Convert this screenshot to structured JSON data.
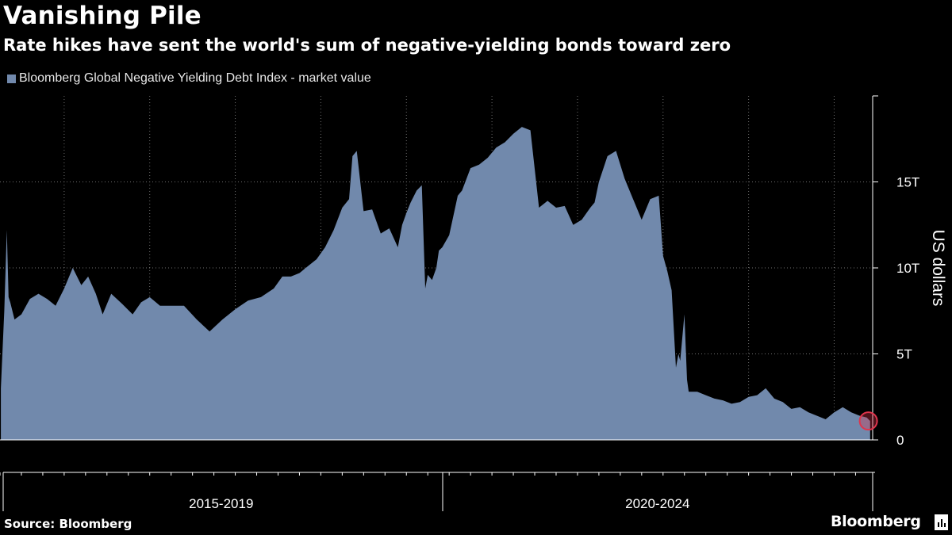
{
  "header": {
    "title": "Vanishing Pile",
    "subtitle": "Rate hikes have sent the world's sum of negative-yielding bonds toward zero"
  },
  "footer": {
    "source": "Source: Bloomberg",
    "brand": "Bloomberg"
  },
  "icons": [
    "bloomberg-terminal-icon"
  ],
  "colors": {
    "background": "#000000",
    "series": "#7189ac",
    "highlight": "#e0344c",
    "grid": "#6e6e6e",
    "text": "#ffffff"
  },
  "chart_data": {
    "type": "area",
    "title": "Vanishing Pile",
    "subtitle": "Rate hikes have sent the world's sum of negative-yielding bonds toward zero",
    "ylabel": "US dollars",
    "y_unit": "trillion US dollars",
    "ylim": [
      0,
      20
    ],
    "y_ticks": [
      {
        "value": 0,
        "label": "0"
      },
      {
        "value": 5,
        "label": "5T"
      },
      {
        "value": 10,
        "label": "10T"
      },
      {
        "value": 15,
        "label": "15T"
      }
    ],
    "x_range": [
      2014.25,
      2024.45
    ],
    "x_groups": [
      {
        "label": "2015-2019",
        "start": 2014.25,
        "end": 2019.42
      },
      {
        "label": "2020-2024",
        "start": 2019.42,
        "end": 2024.45
      }
    ],
    "x_gridlines": [
      2015,
      2016,
      2017,
      2018,
      2019,
      2020,
      2021,
      2022,
      2023,
      2024
    ],
    "grid": true,
    "legend": {
      "position": "top-left",
      "entries": [
        "Bloomberg Global Negative Yielding Debt Index - market value"
      ]
    },
    "series": [
      {
        "name": "Bloomberg Global Negative Yielding Debt Index - market value",
        "x": [
          2014.26,
          2014.3,
          2014.33,
          2014.35,
          2014.37,
          2014.42,
          2014.5,
          2014.6,
          2014.7,
          2014.8,
          2014.9,
          2015.0,
          2015.1,
          2015.2,
          2015.28,
          2015.37,
          2015.45,
          2015.55,
          2015.68,
          2015.8,
          2015.9,
          2016.0,
          2016.12,
          2016.25,
          2016.4,
          2016.55,
          2016.7,
          2016.85,
          2017.0,
          2017.15,
          2017.3,
          2017.45,
          2017.55,
          2017.65,
          2017.75,
          2017.85,
          2017.95,
          2018.05,
          2018.15,
          2018.25,
          2018.33,
          2018.37,
          2018.42,
          2018.5,
          2018.6,
          2018.7,
          2018.8,
          2018.9,
          2018.95,
          2019.0,
          2019.05,
          2019.12,
          2019.18,
          2019.22,
          2019.25,
          2019.3,
          2019.35,
          2019.38,
          2019.42,
          2019.5,
          2019.6,
          2019.65,
          2019.75,
          2019.85,
          2019.95,
          2020.05,
          2020.15,
          2020.25,
          2020.35,
          2020.45,
          2020.55,
          2020.65,
          2020.75,
          2020.85,
          2020.95,
          2021.05,
          2021.15,
          2021.2,
          2021.25,
          2021.35,
          2021.45,
          2021.55,
          2021.65,
          2021.75,
          2021.85,
          2021.95,
          2022.0,
          2022.05,
          2022.1,
          2022.15,
          2022.18,
          2022.2,
          2022.25,
          2022.28,
          2022.3,
          2022.35,
          2022.4,
          2022.5,
          2022.6,
          2022.7,
          2022.8,
          2022.9,
          2023.0,
          2023.1,
          2023.2,
          2023.3,
          2023.4,
          2023.5,
          2023.6,
          2023.7,
          2023.8,
          2023.9,
          2024.0,
          2024.1,
          2024.2,
          2024.3,
          2024.38,
          2024.42
        ],
        "y": [
          3.0,
          7.5,
          12.2,
          8.3,
          8.0,
          7.0,
          7.3,
          8.2,
          8.5,
          8.2,
          7.8,
          8.8,
          10.0,
          9.0,
          9.5,
          8.5,
          7.3,
          8.5,
          7.9,
          7.3,
          8.0,
          8.3,
          7.8,
          7.8,
          7.8,
          7.0,
          6.3,
          7.0,
          7.6,
          8.1,
          8.3,
          8.8,
          9.5,
          9.5,
          9.7,
          10.1,
          10.5,
          11.2,
          12.2,
          13.5,
          14.0,
          16.5,
          16.8,
          13.3,
          13.4,
          12.0,
          12.3,
          11.2,
          12.5,
          13.2,
          13.8,
          14.5,
          14.8,
          8.8,
          9.6,
          9.3,
          10.0,
          11.0,
          11.2,
          11.9,
          14.2,
          14.5,
          15.8,
          16.0,
          16.4,
          17.0,
          17.3,
          17.8,
          18.2,
          18.0,
          13.5,
          13.9,
          13.5,
          13.6,
          12.5,
          12.8,
          13.5,
          13.8,
          15.0,
          16.5,
          16.8,
          15.2,
          14.0,
          12.8,
          14.0,
          14.2,
          10.7,
          9.8,
          8.7,
          4.2,
          5.0,
          4.6,
          7.3,
          3.5,
          2.8,
          2.8,
          2.8,
          2.6,
          2.4,
          2.3,
          2.1,
          2.2,
          2.5,
          2.6,
          3.0,
          2.4,
          2.2,
          1.8,
          1.9,
          1.6,
          1.4,
          1.2,
          1.6,
          1.9,
          1.6,
          1.4,
          1.3,
          1.1
        ]
      }
    ],
    "annotations": [
      {
        "type": "circle-marker",
        "x": 2024.4,
        "y": 1.1
      }
    ]
  }
}
